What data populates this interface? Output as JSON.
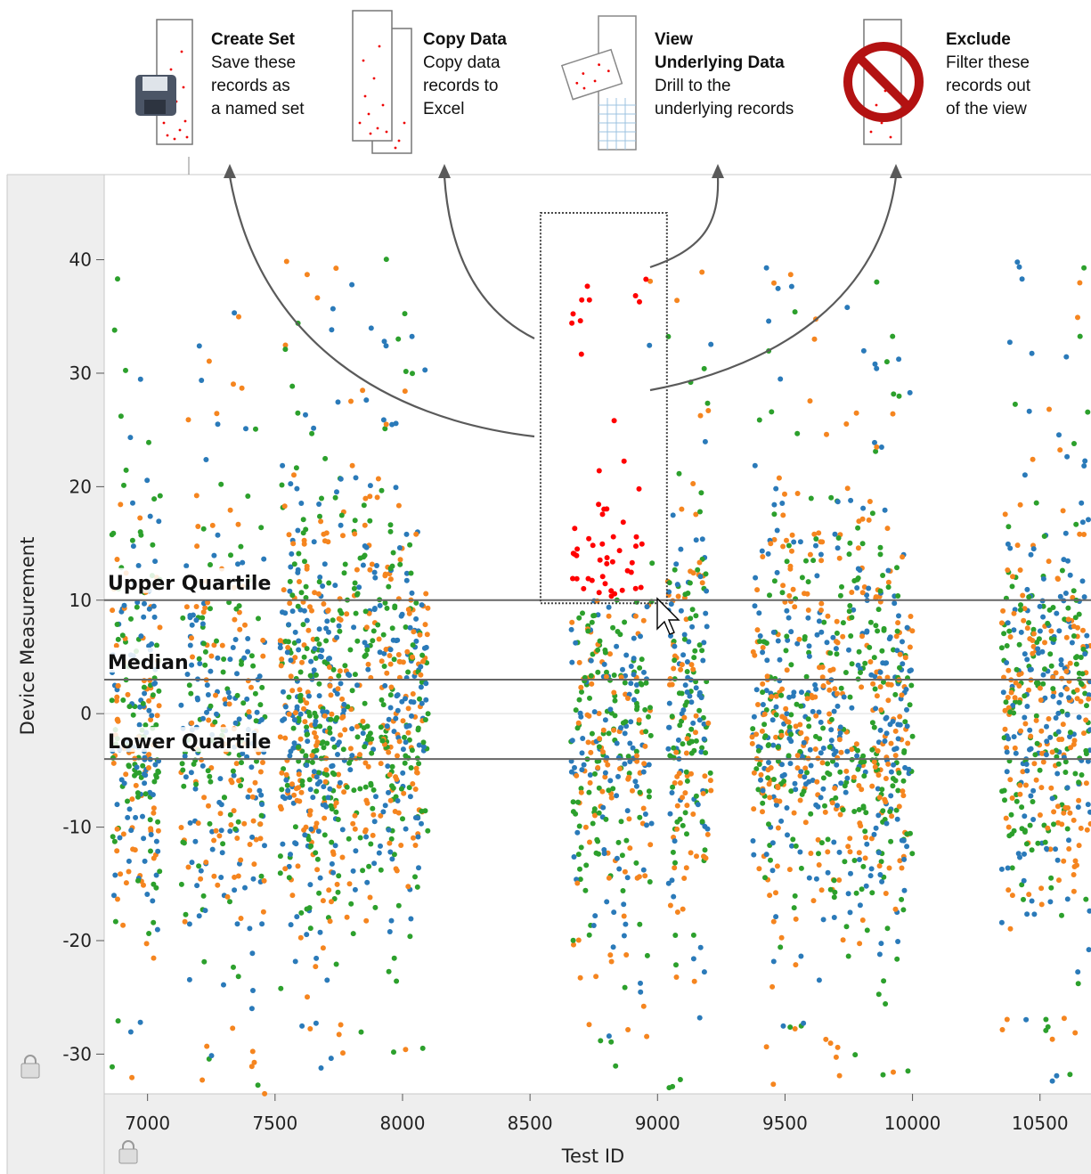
{
  "actions": [
    {
      "id": "create-set",
      "title": "Create Set",
      "desc": "Save these\nrecords as\na named set",
      "icon": "floppy-disk-icon"
    },
    {
      "id": "copy-data",
      "title": "Copy Data",
      "desc": "Copy data\nrecords to\nExcel",
      "icon": "copy-pages-icon"
    },
    {
      "id": "view-data",
      "title": "View\nUnderlying Data",
      "desc": "Drill to the\nunderlying records",
      "icon": "data-grid-icon"
    },
    {
      "id": "exclude",
      "title": "Exclude",
      "desc": "Filter these\nrecords out\nof the view",
      "icon": "prohibit-icon"
    }
  ],
  "reference_lines": [
    {
      "label": "Upper Quartile",
      "value": 10
    },
    {
      "label": "Median",
      "value": 3
    },
    {
      "label": "Lower Quartile",
      "value": -4
    }
  ],
  "colors": {
    "blue": "#2a7ab9",
    "orange": "#f5851f",
    "green": "#2ca02c",
    "selected": "#ff0000",
    "refline": "#666666",
    "panel": "#eeeeee"
  },
  "chart_data": {
    "type": "scatter",
    "xlabel": "Test ID",
    "ylabel": "Device Measurement",
    "xlim": [
      6830,
      10700
    ],
    "ylim": [
      -33.5,
      47.5
    ],
    "x_ticks": [
      7000,
      7500,
      8000,
      8500,
      9000,
      9500,
      10000,
      10500
    ],
    "y_ticks": [
      -30,
      -20,
      -10,
      0,
      10,
      20,
      30,
      40
    ],
    "selection": {
      "x": [
        8660,
        8960
      ],
      "y": [
        10.2,
        43.5
      ]
    },
    "clusters": [
      {
        "x_range": [
          6860,
          7050
        ],
        "y_center": -1,
        "n": 260
      },
      {
        "x_range": [
          7130,
          7460
        ],
        "y_center": -3,
        "n": 330
      },
      {
        "x_range": [
          7520,
          7750
        ],
        "y_center": 0,
        "n": 420
      },
      {
        "x_range": [
          7750,
          8100
        ],
        "y_center": 1,
        "n": 460
      },
      {
        "x_range": [
          8660,
          8980
        ],
        "y_center": -1,
        "n": 380
      },
      {
        "x_range": [
          9040,
          9210
        ],
        "y_center": 1,
        "n": 230
      },
      {
        "x_range": [
          9370,
          9700
        ],
        "y_center": 0,
        "n": 420
      },
      {
        "x_range": [
          9700,
          10000
        ],
        "y_center": -1,
        "n": 400
      },
      {
        "x_range": [
          10350,
          10700
        ],
        "y_center": 0,
        "n": 470
      }
    ]
  }
}
